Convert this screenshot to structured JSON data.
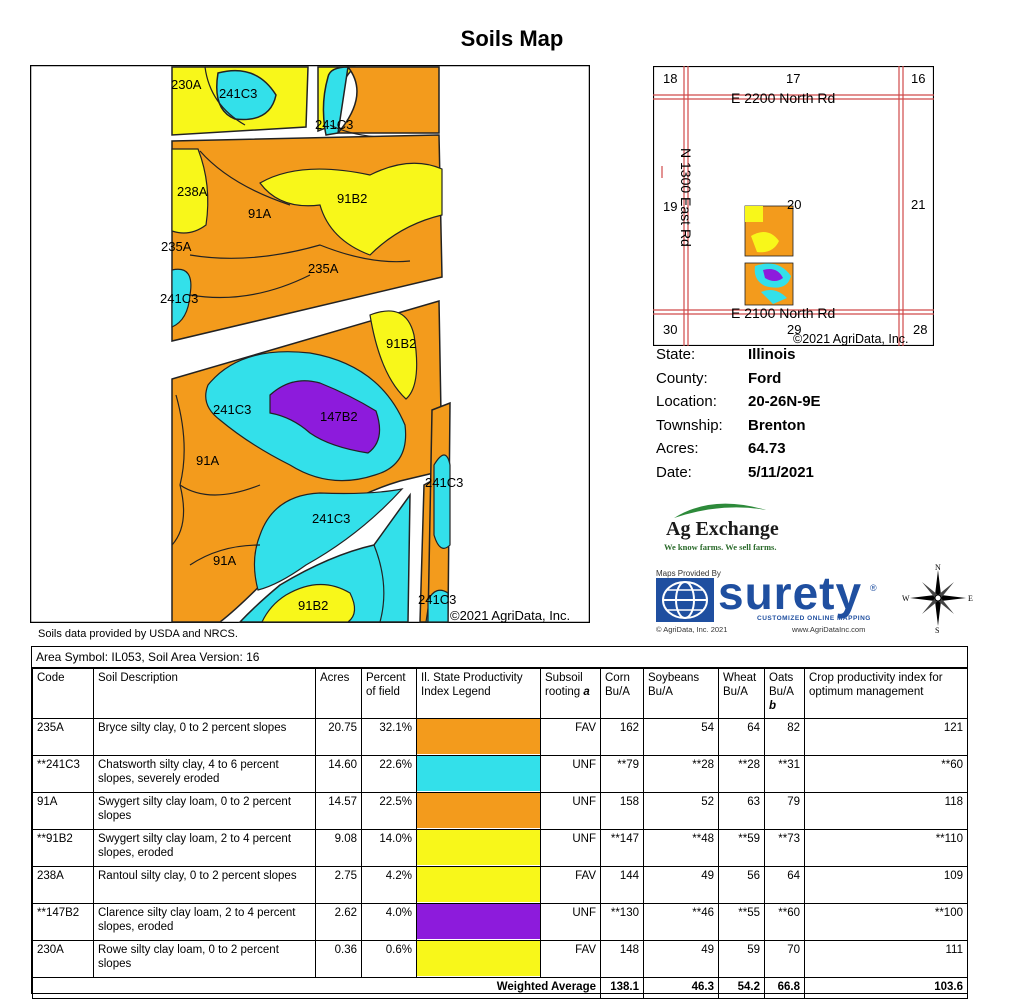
{
  "title": "Soils Map",
  "main_map": {
    "labels": [
      "230A",
      "241C3",
      "241C3",
      "238A",
      "91A",
      "91B2",
      "235A",
      "235A",
      "241C3",
      "91B2",
      "241C3",
      "147B2",
      "91A",
      "241C3",
      "241C3",
      "91A",
      "91B2",
      "241C3"
    ],
    "copyright": "©2021 AgriData, Inc."
  },
  "inset_map": {
    "section_numbers": [
      "18",
      "17",
      "16",
      "19",
      "20",
      "21",
      "30",
      "29",
      "28"
    ],
    "road_north": "E 2200 North Rd",
    "road_south": "E 2100 North Rd",
    "road_west": "N 1300 East Rd",
    "copyright": "©2021 AgriData, Inc."
  },
  "info": [
    {
      "label": "State:",
      "value": "Illinois"
    },
    {
      "label": "County:",
      "value": "Ford"
    },
    {
      "label": "Location:",
      "value": "20-26N-9E"
    },
    {
      "label": "Township:",
      "value": "Brenton"
    },
    {
      "label": "Acres:",
      "value": "64.73"
    },
    {
      "label": "Date:",
      "value": "5/11/2021"
    }
  ],
  "ag_exchange": {
    "name": "Ag Exchange",
    "tagline": "We know farms. We sell farms."
  },
  "surety": {
    "provided_by": "Maps Provided By",
    "name": "surety",
    "registered": "®",
    "subtitle": "CUSTOMIZED ONLINE MAPPING",
    "copyright": "© AgriData, Inc. 2021",
    "website": "www.AgriDataInc.com"
  },
  "compass": {
    "n": "N",
    "s": "S",
    "e": "E",
    "w": "W"
  },
  "source_note": "Soils data provided by USDA and NRCS.",
  "table": {
    "area_symbol": "Area Symbol: IL053, Soil Area Version: 16",
    "headers": {
      "code": "Code",
      "desc": "Soil Description",
      "acres": "Acres",
      "percent": "Percent of field",
      "legend": "Il. State Productivity Index Legend",
      "subsoil": "Subsoil rooting",
      "subsoil_note": "a",
      "corn": "Corn Bu/A",
      "soybeans": "Soybeans Bu/A",
      "wheat": "Wheat Bu/A",
      "oats": "Oats Bu/A",
      "oats_note": "b",
      "cpi": "Crop productivity index for optimum management"
    },
    "rows": [
      {
        "code": "235A",
        "desc": "Bryce silty clay, 0 to 2 percent slopes",
        "acres": "20.75",
        "percent": "32.1%",
        "color": "#f39b1c",
        "subsoil": "FAV",
        "corn": "162",
        "soybeans": "54",
        "wheat": "64",
        "oats": "82",
        "cpi": "121"
      },
      {
        "code": "**241C3",
        "desc": "Chatsworth silty clay, 4 to 6 percent slopes, severely eroded",
        "acres": "14.60",
        "percent": "22.6%",
        "color": "#33e0ea",
        "subsoil": "UNF",
        "corn": "**79",
        "soybeans": "**28",
        "wheat": "**28",
        "oats": "**31",
        "cpi": "**60"
      },
      {
        "code": "91A",
        "desc": "Swygert silty clay loam, 0 to 2 percent slopes",
        "acres": "14.57",
        "percent": "22.5%",
        "color": "#f39b1c",
        "subsoil": "UNF",
        "corn": "158",
        "soybeans": "52",
        "wheat": "63",
        "oats": "79",
        "cpi": "118"
      },
      {
        "code": "**91B2",
        "desc": "Swygert silty clay loam, 2 to 4 percent slopes, eroded",
        "acres": "9.08",
        "percent": "14.0%",
        "color": "#f8f71a",
        "subsoil": "UNF",
        "corn": "**147",
        "soybeans": "**48",
        "wheat": "**59",
        "oats": "**73",
        "cpi": "**110"
      },
      {
        "code": "238A",
        "desc": "Rantoul silty clay, 0 to 2 percent slopes",
        "acres": "2.75",
        "percent": "4.2%",
        "color": "#f8f71a",
        "subsoil": "FAV",
        "corn": "144",
        "soybeans": "49",
        "wheat": "56",
        "oats": "64",
        "cpi": "109"
      },
      {
        "code": "**147B2",
        "desc": "Clarence silty clay loam, 2 to 4 percent slopes, eroded",
        "acres": "2.62",
        "percent": "4.0%",
        "color": "#8d1bdc",
        "subsoil": "UNF",
        "corn": "**130",
        "soybeans": "**46",
        "wheat": "**55",
        "oats": "**60",
        "cpi": "**100"
      },
      {
        "code": "230A",
        "desc": "Rowe silty clay loam, 0 to 2 percent slopes",
        "acres": "0.36",
        "percent": "0.6%",
        "color": "#f8f71a",
        "subsoil": "FAV",
        "corn": "148",
        "soybeans": "49",
        "wheat": "59",
        "oats": "70",
        "cpi": "111"
      }
    ],
    "weighted": {
      "label": "Weighted Average",
      "corn": "138.1",
      "soybeans": "46.3",
      "wheat": "54.2",
      "oats": "66.8",
      "cpi": "103.6"
    }
  }
}
